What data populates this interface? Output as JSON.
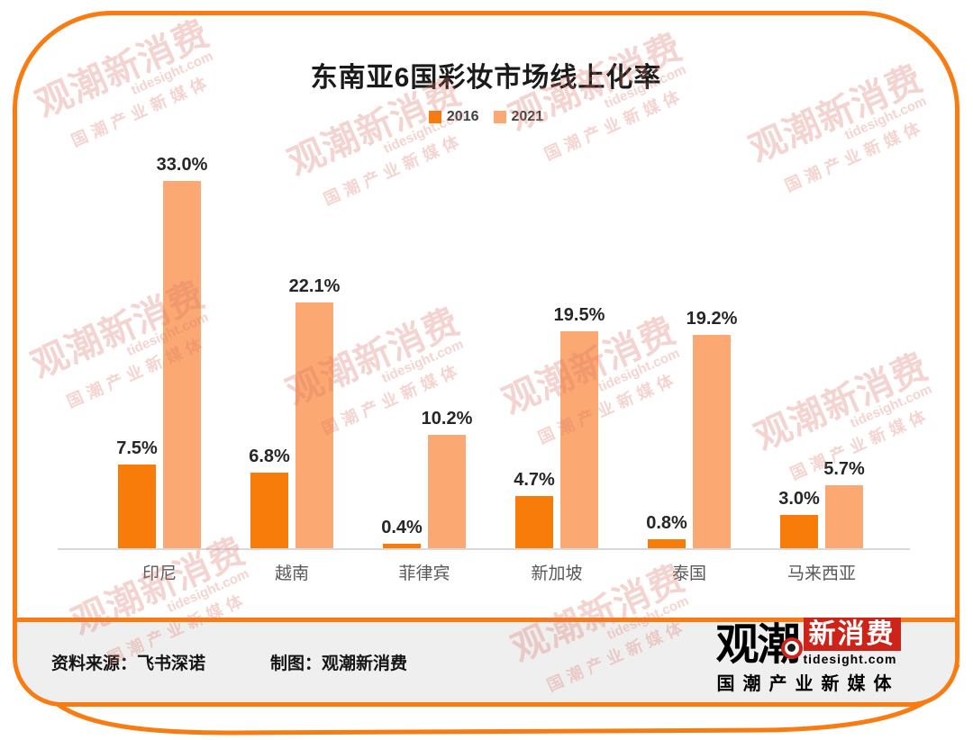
{
  "title": "东南亚6国彩妆市场线上化率",
  "chart_data": {
    "type": "bar",
    "title": "东南亚6国彩妆市场线上化率",
    "categories": [
      "印尼",
      "越南",
      "菲律宾",
      "新加坡",
      "泰国",
      "马来西亚"
    ],
    "series": [
      {
        "name": "2016",
        "color": "#F87C0A",
        "values": [
          7.5,
          6.8,
          0.4,
          4.7,
          0.8,
          3.0
        ]
      },
      {
        "name": "2021",
        "color": "#FBA873",
        "values": [
          33.0,
          22.1,
          10.2,
          19.5,
          19.2,
          5.7
        ]
      }
    ],
    "value_suffix": "%",
    "ylim": [
      0,
      35
    ],
    "grid": false,
    "legend_position": "top-center",
    "xlabel": "",
    "ylabel": ""
  },
  "footer": {
    "source": "资料来源：飞书深诺",
    "credit": "制图：观潮新消费"
  },
  "logo": {
    "wordmark_black": "观潮",
    "wordmark_red": "新消费",
    "domain": "tidesight.com",
    "tagline": "国潮产业新媒体"
  },
  "watermark": {
    "line1": "观潮新消费",
    "line2": "tidesight.com",
    "line3": "国潮产业新媒体"
  },
  "colors": {
    "accent_border": "#F87C12",
    "bar_2016": "#F87C0A",
    "bar_2021": "#FBA873",
    "footer_bg": "#EFEFEF",
    "axis_line": "#D9D9D9",
    "logo_red": "#CE2318",
    "watermark_red": "#DD7568"
  }
}
